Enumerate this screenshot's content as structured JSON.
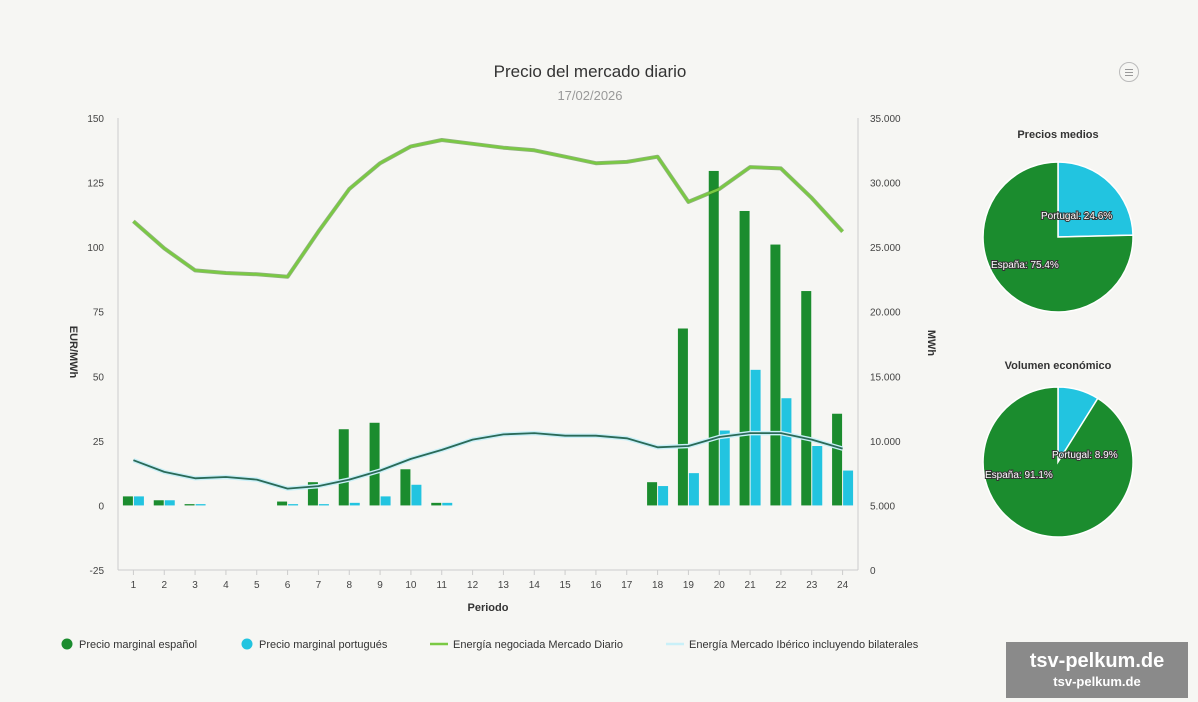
{
  "header": {
    "title": "Precio del mercado diario",
    "date": "17/02/2026"
  },
  "axes": {
    "left_label": "EUR/MWh",
    "right_label": "MWh",
    "x_label": "Periodo"
  },
  "legend": [
    {
      "label": "Precio marginal español",
      "color": "#1b8c2e"
    },
    {
      "label": "Precio marginal portugués",
      "color": "#22c4e0"
    },
    {
      "label": "Energía negociada Mercado Diario",
      "color": "#7ac943"
    },
    {
      "label": "Energía Mercado Ibérico incluyendo bilaterales",
      "color": "#c9f0f8"
    }
  ],
  "colors": {
    "es": "#1b8c2e",
    "pt": "#22c4e0",
    "energy_md": "#7ac943",
    "energy_iberico": "#2a6a57"
  },
  "chart_data": [
    {
      "type": "bar+line",
      "title": "Precio del mercado diario",
      "subtitle": "17/02/2026",
      "xlabel": "Periodo",
      "ylabel_left": "EUR/MWh",
      "ylabel_right": "MWh",
      "ylim_left": [
        -25,
        150
      ],
      "ylim_right": [
        0,
        35000
      ],
      "left_ticks": [
        "-25",
        "0",
        "25",
        "50",
        "75",
        "100",
        "125",
        "150"
      ],
      "right_ticks": [
        "0",
        "5.000",
        "10.000",
        "15.000",
        "20.000",
        "25.000",
        "30.000",
        "35.000"
      ],
      "categories": [
        "1",
        "2",
        "3",
        "4",
        "5",
        "6",
        "7",
        "8",
        "9",
        "10",
        "11",
        "12",
        "13",
        "14",
        "15",
        "16",
        "17",
        "18",
        "19",
        "20",
        "21",
        "22",
        "23",
        "24"
      ],
      "series": [
        {
          "name": "Precio marginal español",
          "type": "bar",
          "axis": "left",
          "values": [
            3.5,
            2,
            0.5,
            0,
            0,
            1.5,
            9,
            29.5,
            32,
            14,
            1,
            0,
            0,
            0,
            0,
            0,
            0,
            9,
            68.5,
            129.5,
            114,
            101,
            83,
            35.5
          ]
        },
        {
          "name": "Precio marginal portugués",
          "type": "bar",
          "axis": "left",
          "values": [
            3.5,
            2,
            0.5,
            0,
            0,
            0.5,
            0.5,
            1,
            3.5,
            8,
            1,
            0,
            0,
            0,
            0,
            0,
            0,
            7.5,
            12.5,
            29,
            52.5,
            41.5,
            23,
            13.5
          ]
        },
        {
          "name": "Energía negociada Mercado Diario",
          "type": "line",
          "axis": "right",
          "values": [
            27000,
            24900,
            23200,
            23000,
            22900,
            22700,
            26200,
            29500,
            31500,
            32800,
            33300,
            33000,
            32700,
            32500,
            32000,
            31500,
            31600,
            32000,
            28500,
            29500,
            31200,
            31100,
            28800,
            26200
          ]
        },
        {
          "name": "Energía Mercado Ibérico incluyendo bilaterales",
          "type": "line",
          "axis": "right",
          "values": [
            8500,
            7600,
            7100,
            7200,
            7000,
            6300,
            6500,
            7000,
            7700,
            8600,
            9300,
            10100,
            10500,
            10600,
            10400,
            10400,
            10200,
            9500,
            9600,
            10300,
            10600,
            10600,
            10100,
            9400
          ]
        }
      ]
    },
    {
      "type": "pie",
      "title": "Precios medios",
      "slices": [
        {
          "label": "España",
          "value": 75.4
        },
        {
          "label": "Portugal",
          "value": 24.6
        }
      ]
    },
    {
      "type": "pie",
      "title": "Volumen económico",
      "slices": [
        {
          "label": "España",
          "value": 91.1
        },
        {
          "label": "Portugal",
          "value": 8.9
        }
      ]
    }
  ],
  "watermark": {
    "line1": "tsv-pelkum.de",
    "line2": "tsv-pelkum.de"
  }
}
